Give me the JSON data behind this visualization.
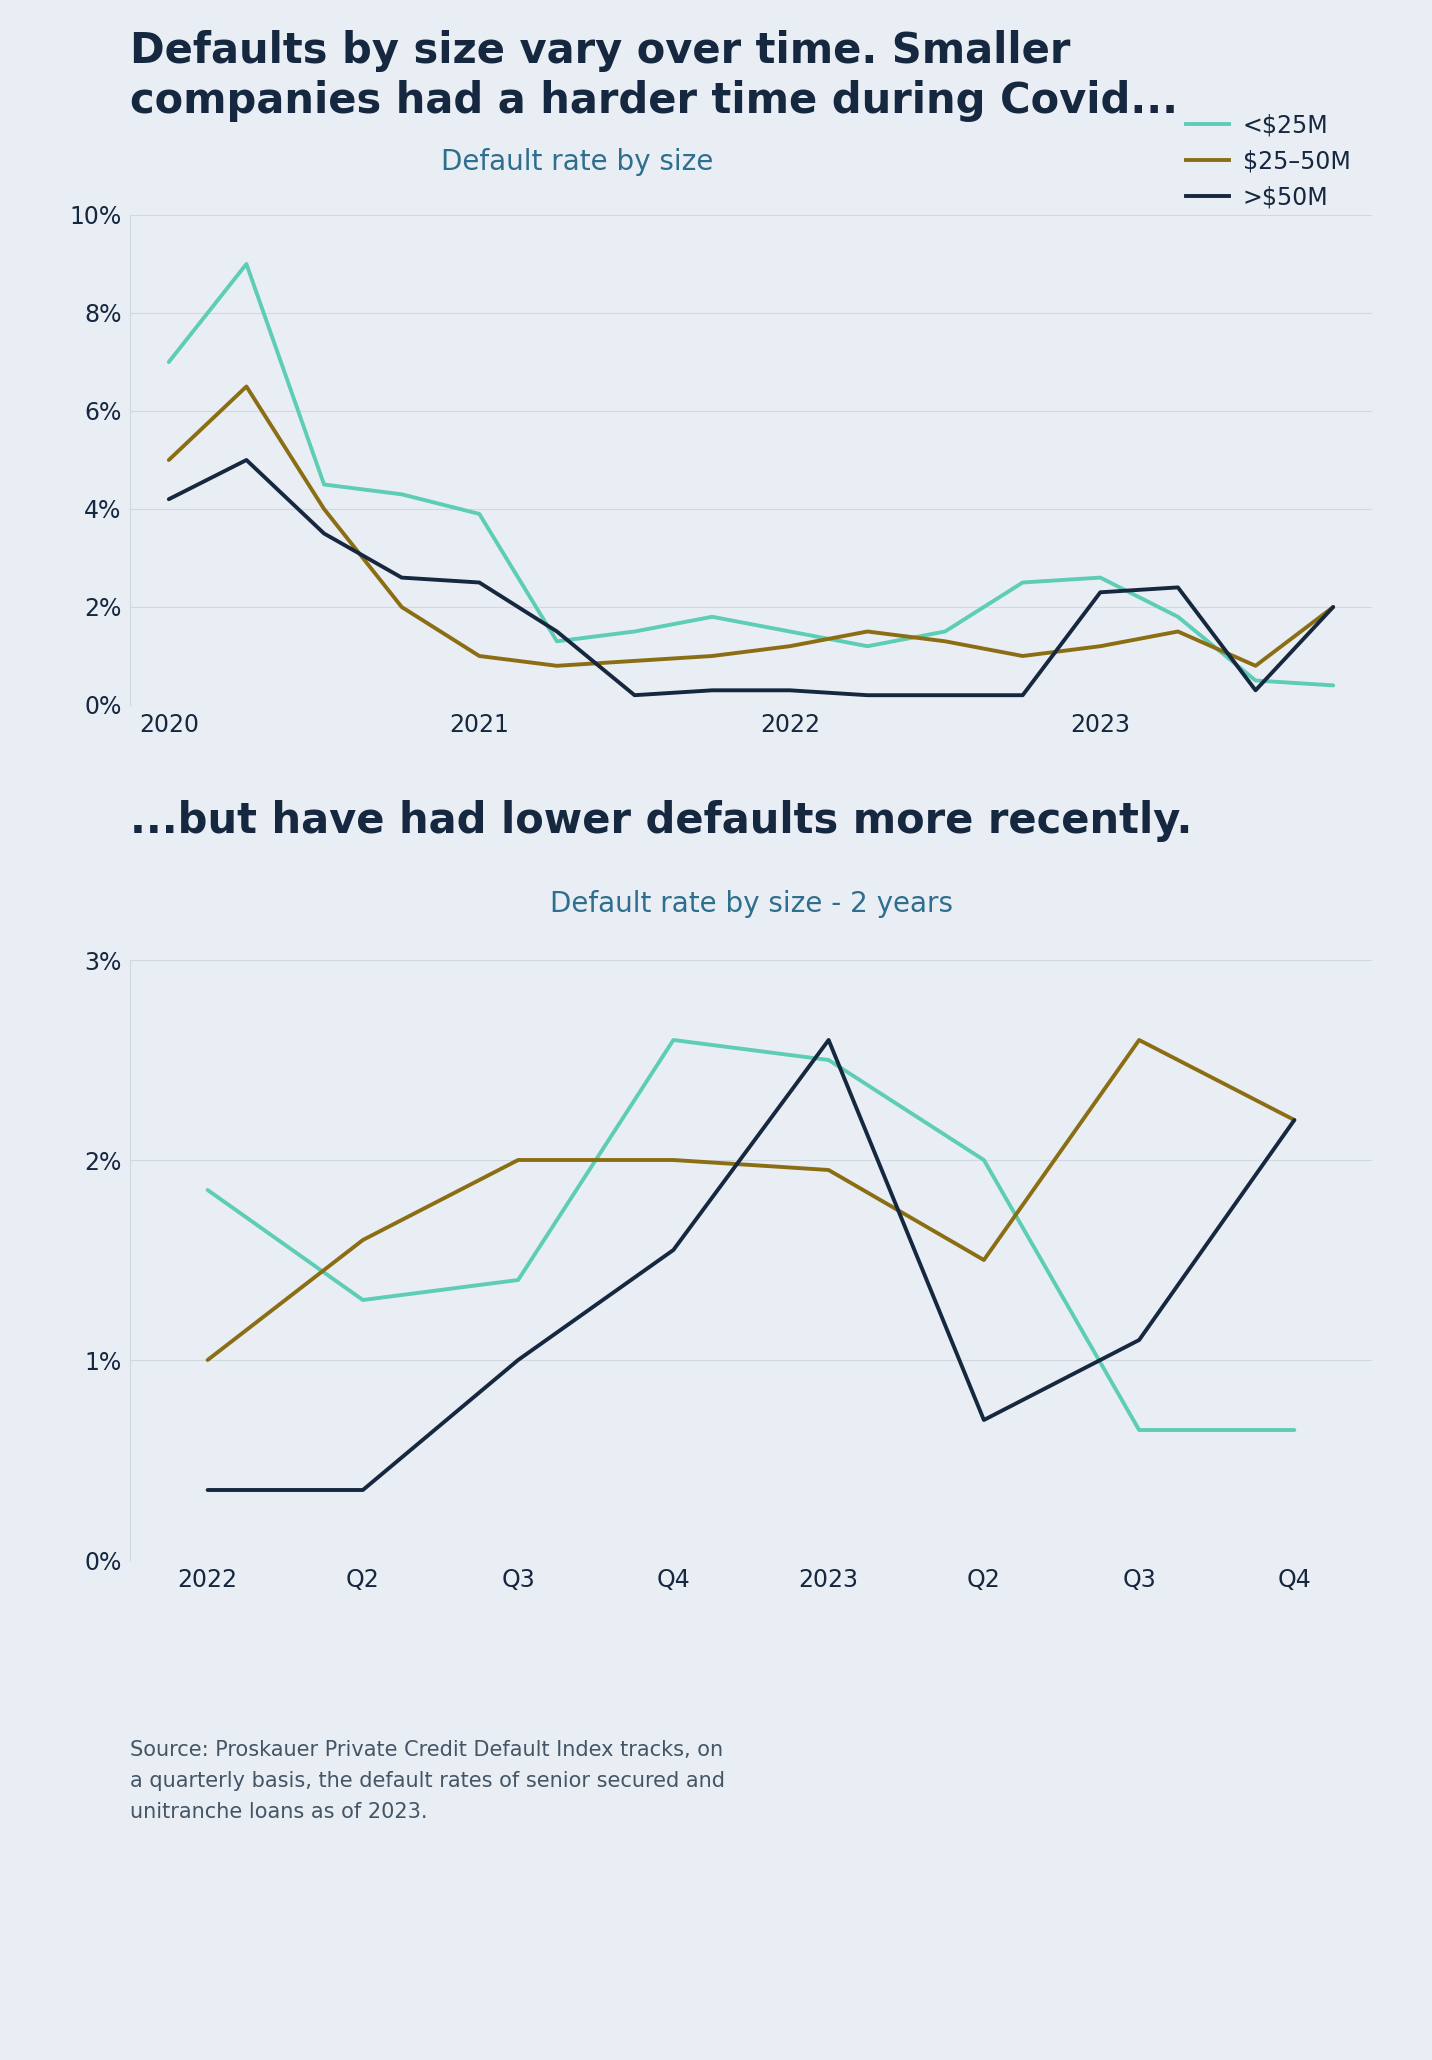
{
  "background_color": "#e9eef4",
  "title1": "Defaults by size vary over time. Smaller\ncompanies had a harder time during Covid...",
  "title2": "...but have had lower defaults more recently.",
  "chart1_title": "Default rate by size",
  "chart2_title": "Default rate by size - 2 years",
  "source_text": "Source: Proskauer Private Credit Default Index tracks, on\na quarterly basis, the default rates of senior secured and\nunitranche loans as of 2023.",
  "colors": {
    "small": "#5ecdb5",
    "mid": "#8b6e14",
    "large": "#162840"
  },
  "legend_labels": [
    "<$25M",
    "$25–50M",
    ">$50M"
  ],
  "chart1": {
    "x_tick_labels": [
      "2020",
      "",
      "",
      "",
      "2021",
      "",
      "",
      "",
      "2022",
      "",
      "",
      "",
      "2023",
      "",
      "",
      ""
    ],
    "small": [
      7.0,
      9.0,
      4.5,
      4.3,
      3.9,
      1.3,
      1.5,
      1.8,
      1.5,
      1.2,
      1.5,
      2.5,
      2.6,
      1.8,
      0.5,
      0.4
    ],
    "mid": [
      5.0,
      6.5,
      4.0,
      2.0,
      1.0,
      0.8,
      0.9,
      1.0,
      1.2,
      1.5,
      1.3,
      1.0,
      1.2,
      1.5,
      0.8,
      2.0
    ],
    "large": [
      4.2,
      5.0,
      3.5,
      2.6,
      2.5,
      1.5,
      0.2,
      0.3,
      0.3,
      0.2,
      0.2,
      0.2,
      2.3,
      2.4,
      0.3,
      2.0
    ],
    "ylim": [
      0,
      10
    ],
    "yticks": [
      0,
      2,
      4,
      6,
      8,
      10
    ],
    "ytick_labels": [
      "0%",
      "2%",
      "4%",
      "6%",
      "8%",
      "10%"
    ]
  },
  "chart2": {
    "x_labels": [
      "2022",
      "Q2",
      "Q3",
      "Q4",
      "2023",
      "Q2",
      "Q3",
      "Q4"
    ],
    "small": [
      1.85,
      1.3,
      1.4,
      2.6,
      2.5,
      2.0,
      0.65,
      0.65
    ],
    "mid": [
      1.0,
      1.6,
      2.0,
      2.0,
      1.95,
      1.5,
      2.6,
      2.2
    ],
    "large": [
      0.35,
      0.35,
      1.0,
      1.55,
      2.6,
      0.7,
      1.1,
      2.2
    ],
    "ylim": [
      0,
      3
    ],
    "yticks": [
      0,
      1,
      2,
      3
    ],
    "ytick_labels": [
      "0%",
      "1%",
      "2%",
      "3%"
    ]
  },
  "title_color": "#162840",
  "axis_color": "#162840",
  "chart_title_color": "#2e6e8e",
  "tick_color": "#162840",
  "grid_color": "#d0d8e0",
  "source_color": "#445566",
  "line_width": 2.8,
  "title1_fontsize": 30,
  "title2_fontsize": 30,
  "chart_title_fontsize": 20,
  "tick_fontsize": 17,
  "legend_fontsize": 17,
  "source_fontsize": 15
}
